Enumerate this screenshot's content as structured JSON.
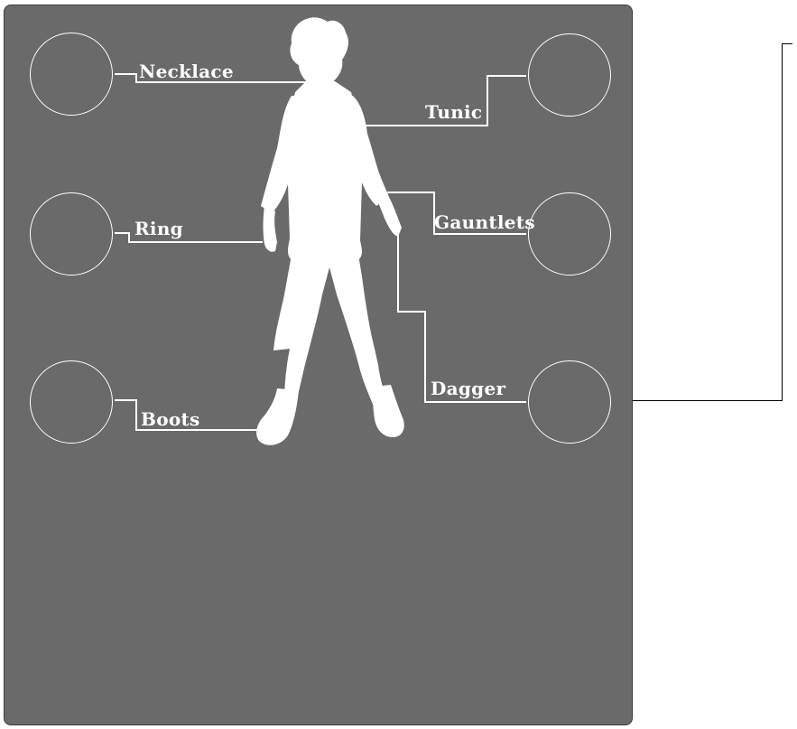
{
  "equipment": {
    "slots": [
      {
        "id": "necklace",
        "label": "Necklace"
      },
      {
        "id": "tunic",
        "label": "Tunic"
      },
      {
        "id": "ring",
        "label": "Ring"
      },
      {
        "id": "gauntlets",
        "label": "Gauntlets"
      },
      {
        "id": "boots",
        "label": "Boots"
      },
      {
        "id": "dagger",
        "label": "Dagger"
      }
    ]
  },
  "colors": {
    "panel": "#6a6a6a",
    "lines": "#ffffff",
    "silhouette": "#ffffff",
    "background": "#ffffff",
    "outer_line": "#000000"
  }
}
